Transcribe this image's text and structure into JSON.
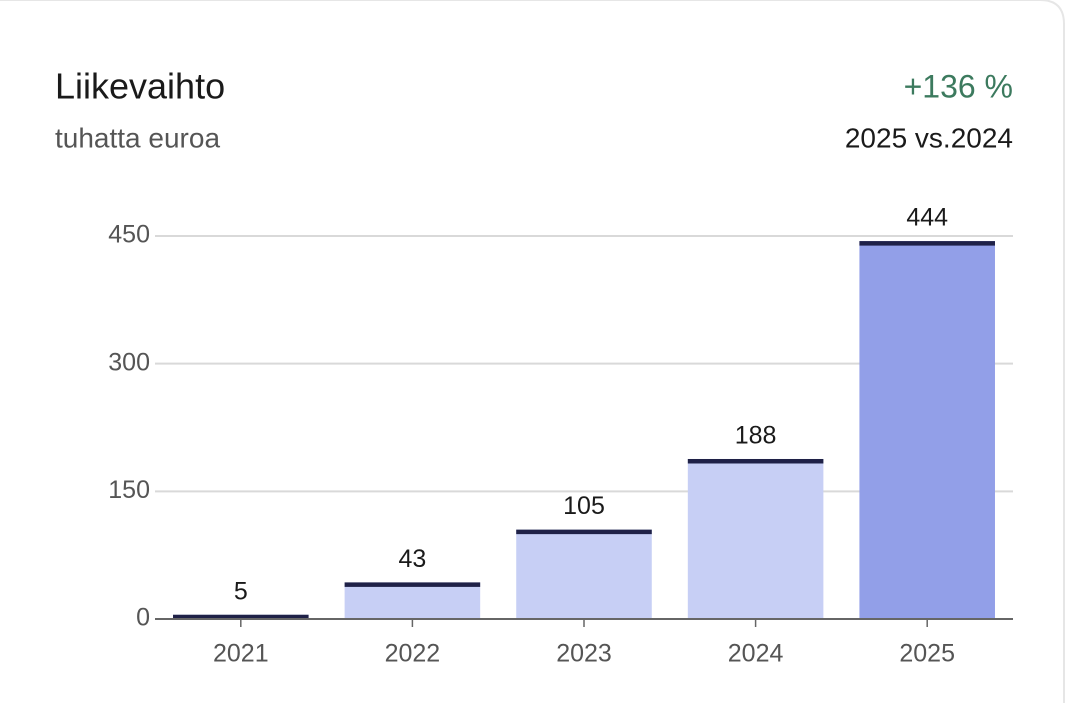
{
  "chart_data": {
    "type": "bar",
    "title": "Liikevaihto",
    "subtitle": "tuhatta euroa",
    "change": "+136 %",
    "comparison": "2025 vs.2024",
    "categories": [
      "2021",
      "2022",
      "2023",
      "2024",
      "2025"
    ],
    "values": [
      5,
      43,
      105,
      188,
      444
    ],
    "colors": [
      "#c7cff5",
      "#c7cff5",
      "#c7cff5",
      "#c7cff5",
      "#929fe8"
    ],
    "cap_color": "#1f2147",
    "change_color": "#3c7a5e",
    "ylim": [
      0,
      450
    ],
    "yticks": [
      0,
      150,
      300,
      450
    ],
    "grid": true
  }
}
